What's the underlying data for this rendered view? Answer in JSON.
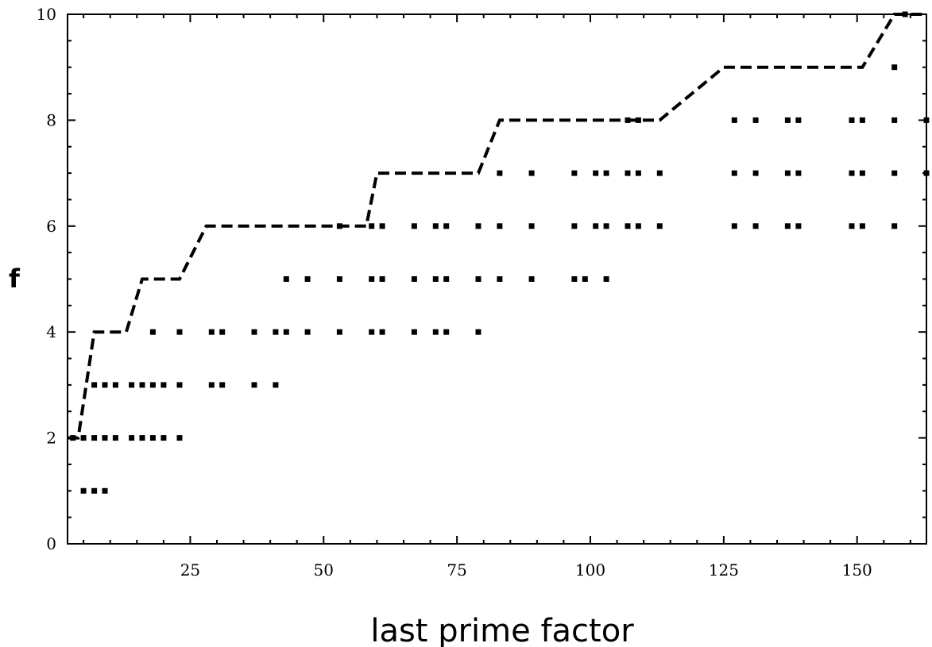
{
  "chart_data": {
    "type": "scatter",
    "xlabel": "last prime factor",
    "ylabel": "f",
    "xlim": [
      2,
      163
    ],
    "ylim": [
      0,
      10
    ],
    "xticks": [
      25,
      50,
      75,
      100,
      125,
      150
    ],
    "yticks": [
      0,
      2,
      4,
      6,
      8,
      10
    ],
    "grid": false,
    "colors": {
      "ink": "#000000",
      "background": "#ffffff"
    },
    "series": [
      {
        "type": "scatter",
        "points": [
          [
            5,
            1
          ],
          [
            7,
            1
          ],
          [
            9,
            1
          ],
          [
            3,
            2
          ],
          [
            5,
            2
          ],
          [
            7,
            2
          ],
          [
            9,
            2
          ],
          [
            11,
            2
          ],
          [
            14,
            2
          ],
          [
            16,
            2
          ],
          [
            18,
            2
          ],
          [
            20,
            2
          ],
          [
            23,
            2
          ],
          [
            7,
            3
          ],
          [
            9,
            3
          ],
          [
            11,
            3
          ],
          [
            14,
            3
          ],
          [
            16,
            3
          ],
          [
            18,
            3
          ],
          [
            20,
            3
          ],
          [
            23,
            3
          ],
          [
            29,
            3
          ],
          [
            31,
            3
          ],
          [
            37,
            3
          ],
          [
            41,
            3
          ],
          [
            18,
            4
          ],
          [
            23,
            4
          ],
          [
            29,
            4
          ],
          [
            31,
            4
          ],
          [
            37,
            4
          ],
          [
            41,
            4
          ],
          [
            43,
            4
          ],
          [
            47,
            4
          ],
          [
            53,
            4
          ],
          [
            59,
            4
          ],
          [
            61,
            4
          ],
          [
            67,
            4
          ],
          [
            71,
            4
          ],
          [
            73,
            4
          ],
          [
            79,
            4
          ],
          [
            43,
            5
          ],
          [
            47,
            5
          ],
          [
            53,
            5
          ],
          [
            59,
            5
          ],
          [
            61,
            5
          ],
          [
            67,
            5
          ],
          [
            71,
            5
          ],
          [
            73,
            5
          ],
          [
            79,
            5
          ],
          [
            83,
            5
          ],
          [
            89,
            5
          ],
          [
            97,
            5
          ],
          [
            99,
            5
          ],
          [
            103,
            5
          ],
          [
            53,
            6
          ],
          [
            59,
            6
          ],
          [
            61,
            6
          ],
          [
            67,
            6
          ],
          [
            71,
            6
          ],
          [
            73,
            6
          ],
          [
            79,
            6
          ],
          [
            83,
            6
          ],
          [
            89,
            6
          ],
          [
            97,
            6
          ],
          [
            101,
            6
          ],
          [
            103,
            6
          ],
          [
            107,
            6
          ],
          [
            109,
            6
          ],
          [
            113,
            6
          ],
          [
            127,
            6
          ],
          [
            131,
            6
          ],
          [
            137,
            6
          ],
          [
            139,
            6
          ],
          [
            149,
            6
          ],
          [
            151,
            6
          ],
          [
            157,
            6
          ],
          [
            83,
            7
          ],
          [
            89,
            7
          ],
          [
            97,
            7
          ],
          [
            101,
            7
          ],
          [
            103,
            7
          ],
          [
            107,
            7
          ],
          [
            109,
            7
          ],
          [
            113,
            7
          ],
          [
            127,
            7
          ],
          [
            131,
            7
          ],
          [
            137,
            7
          ],
          [
            139,
            7
          ],
          [
            149,
            7
          ],
          [
            151,
            7
          ],
          [
            157,
            7
          ],
          [
            163,
            7
          ],
          [
            107,
            8
          ],
          [
            109,
            8
          ],
          [
            127,
            8
          ],
          [
            131,
            8
          ],
          [
            137,
            8
          ],
          [
            139,
            8
          ],
          [
            149,
            8
          ],
          [
            151,
            8
          ],
          [
            157,
            8
          ],
          [
            163,
            8
          ],
          [
            157,
            9
          ],
          [
            159,
            10
          ]
        ]
      },
      {
        "type": "line",
        "style": "dashed",
        "points": [
          [
            2,
            2
          ],
          [
            4,
            2
          ],
          [
            7,
            4
          ],
          [
            13,
            4
          ],
          [
            16,
            5
          ],
          [
            23,
            5
          ],
          [
            28,
            6
          ],
          [
            58,
            6
          ],
          [
            60,
            7
          ],
          [
            79,
            7
          ],
          [
            83,
            8
          ],
          [
            113,
            8
          ],
          [
            125,
            9
          ],
          [
            151,
            9
          ],
          [
            157,
            10
          ],
          [
            163,
            10
          ]
        ]
      }
    ]
  }
}
